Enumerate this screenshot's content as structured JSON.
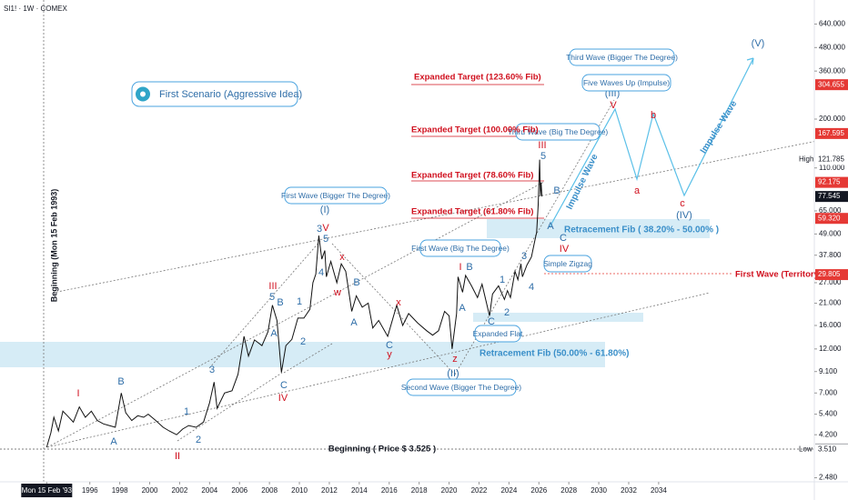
{
  "chart_data": {
    "type": "line",
    "title": "SI1! · 1W · COMEX",
    "log_scale": true,
    "color": "#111111",
    "x": [
      1993.12,
      1993.4,
      1993.6,
      1993.9,
      1994.2,
      1994.5,
      1994.9,
      1995.3,
      1995.7,
      1996.1,
      1996.5,
      1996.9,
      1997.3,
      1997.7,
      1998.1,
      1998.4,
      1998.8,
      1999.2,
      1999.6,
      1999.9,
      2000.4,
      2000.9,
      2001.3,
      2001.8,
      2002.2,
      2002.6,
      2003.1,
      2003.6,
      2004.0,
      2004.3,
      2004.5,
      2005.0,
      2005.5,
      2005.9,
      2006.3,
      2006.6,
      2007.0,
      2007.5,
      2007.9,
      2008.2,
      2008.5,
      2008.8,
      2009.1,
      2009.5,
      2009.9,
      2010.3,
      2010.7,
      2010.9,
      2011.1,
      2011.3,
      2011.5,
      2011.7,
      2011.8,
      2012.1,
      2012.5,
      2012.8,
      2013.1,
      2013.5,
      2013.8,
      2014.2,
      2014.6,
      2014.9,
      2015.3,
      2015.9,
      2016.5,
      2016.9,
      2017.3,
      2017.9,
      2018.5,
      2018.9,
      2019.3,
      2019.7,
      2020.0,
      2020.2,
      2020.5,
      2020.6,
      2020.9,
      2021.1,
      2021.5,
      2021.9,
      2022.2,
      2022.7,
      2022.9,
      2023.3,
      2023.7,
      2023.9,
      2024.1,
      2024.4,
      2024.6,
      2024.8,
      2024.9,
      2025.2,
      2025.5,
      2025.7,
      2025.85,
      2025.95,
      2026.05,
      2026.1,
      2026.15,
      2026.2
    ],
    "values": [
      3.6,
      4.3,
      5.2,
      4.4,
      5.6,
      5.3,
      4.9,
      5.9,
      5.2,
      5.6,
      5.0,
      4.8,
      4.7,
      4.6,
      7.0,
      5.5,
      5.0,
      5.3,
      5.2,
      5.4,
      5.0,
      4.6,
      4.4,
      4.2,
      4.5,
      4.7,
      4.6,
      4.9,
      6.2,
      8.0,
      5.8,
      7.0,
      7.2,
      8.8,
      14.0,
      11.0,
      13.4,
      12.5,
      14.8,
      20.5,
      17.0,
      9.0,
      12.5,
      13.5,
      17.5,
      17.5,
      19.5,
      27.0,
      30.0,
      48.0,
      36.0,
      40.0,
      29.0,
      35.0,
      27.0,
      34.0,
      31.0,
      19.0,
      23.0,
      20.0,
      21.0,
      15.5,
      17.0,
      14.0,
      20.5,
      16.0,
      18.5,
      16.5,
      15.0,
      14.2,
      15.0,
      19.0,
      18.0,
      12.0,
      18.5,
      29.0,
      24.0,
      29.5,
      26.0,
      22.5,
      26.5,
      18.0,
      23.5,
      26.0,
      22.0,
      24.5,
      22.5,
      31.0,
      28.0,
      34.0,
      29.0,
      33.5,
      37.0,
      44.0,
      50.0,
      70.0,
      121.785,
      78.0,
      92.175,
      77.545
    ],
    "xlim": [
      1990,
      2044.4
    ],
    "ylim": [
      2.36,
      859
    ],
    "xticks": [
      {
        "value": 1993.12,
        "label": "Mon 15 Feb '93"
      },
      1996,
      1998,
      2000,
      2002,
      2004,
      2006,
      2008,
      2010,
      2012,
      2014,
      2016,
      2018,
      2020,
      2022,
      2024,
      2026,
      2028,
      2030,
      2032,
      2034
    ],
    "yticks": [
      {
        "value": 640,
        "label": "640.000"
      },
      {
        "value": 480,
        "label": "480.000"
      },
      {
        "value": 360,
        "label": "360.000"
      },
      {
        "value": 200,
        "label": "200.000"
      },
      {
        "value": 110,
        "label": "110.000"
      },
      {
        "value": 65,
        "label": "65.000"
      },
      {
        "value": 49,
        "label": "49.000"
      },
      {
        "value": 37.8,
        "label": "37.800"
      },
      {
        "value": 27,
        "label": "27.000"
      },
      {
        "value": 21,
        "label": "21.000"
      },
      {
        "value": 16,
        "label": "16.000"
      },
      {
        "value": 12,
        "label": "12.000"
      },
      {
        "value": 9.1,
        "label": "9.100"
      },
      {
        "value": 7,
        "label": "7.000"
      },
      {
        "value": 5.4,
        "label": "5.400"
      },
      {
        "value": 4.2,
        "label": "4.200"
      },
      {
        "value": 2.48,
        "label": "2.480"
      }
    ],
    "price_labels": [
      {
        "value": 304.655,
        "label": "304.655",
        "color": "#e53935"
      },
      {
        "value": 167.595,
        "label": "167.595",
        "color": "#e53935"
      },
      {
        "value": 121.785,
        "label": "121.785",
        "color": "#ffffff"
      },
      {
        "value": 92.175,
        "label": "92.175",
        "color": "#e53935"
      },
      {
        "value": 77.545,
        "label": "77.545",
        "color": "#131722"
      },
      {
        "value": 59.32,
        "label": "59.320",
        "color": "#e53935"
      },
      {
        "value": 29.805,
        "label": "29.805",
        "color": "#e53935"
      },
      {
        "value": 3.525,
        "label": "3.525",
        "color": "#131722"
      },
      {
        "value": 3.51,
        "label": "3.510",
        "color": "#ffffff"
      }
    ],
    "high_label": "High",
    "low_label": "Low",
    "wave_labels": [
      {
        "text": "I",
        "color": "#d0101e"
      },
      {
        "text": "B",
        "color": "#2f6ea8"
      },
      {
        "text": "A",
        "color": "#2f6ea8"
      },
      {
        "text": "II",
        "color": "#d0101e"
      },
      {
        "text": "1",
        "color": "#2f6ea8"
      },
      {
        "text": "2",
        "color": "#2f6ea8"
      },
      {
        "text": "3",
        "color": "#2f6ea8"
      },
      {
        "text": "5",
        "color": "#2f6ea8"
      },
      {
        "text": "III",
        "color": "#d0101e"
      },
      {
        "text": "B",
        "color": "#2f6ea8"
      },
      {
        "text": "A",
        "color": "#2f6ea8"
      },
      {
        "text": "1",
        "color": "#2f6ea8"
      },
      {
        "text": "2",
        "color": "#2f6ea8"
      },
      {
        "text": "C",
        "color": "#2f6ea8"
      },
      {
        "text": "IV",
        "color": "#d0101e"
      },
      {
        "text": "3",
        "color": "#2f6ea8"
      },
      {
        "text": "4",
        "color": "#2f6ea8"
      },
      {
        "text": "5",
        "color": "#2f6ea8"
      },
      {
        "text": "V",
        "color": "#d0101e"
      },
      {
        "text": "(I)",
        "color": "#2f6ea8"
      },
      {
        "text": "x",
        "color": "#d0101e"
      },
      {
        "text": "w",
        "color": "#d0101e"
      },
      {
        "text": "B",
        "color": "#2f6ea8"
      },
      {
        "text": "A",
        "color": "#2f6ea8"
      },
      {
        "text": "x",
        "color": "#d0101e"
      },
      {
        "text": "C",
        "color": "#2f6ea8"
      },
      {
        "text": "y",
        "color": "#d0101e"
      },
      {
        "text": "z",
        "color": "#d0101e"
      },
      {
        "text": "(II)",
        "color": "#2f6ea8"
      },
      {
        "text": "I",
        "color": "#d0101e"
      },
      {
        "text": "B",
        "color": "#2f6ea8"
      },
      {
        "text": "A",
        "color": "#2f6ea8"
      },
      {
        "text": "1",
        "color": "#2f6ea8"
      },
      {
        "text": "2",
        "color": "#2f6ea8"
      },
      {
        "text": "C",
        "color": "#2f6ea8"
      },
      {
        "text": "3",
        "color": "#2f6ea8"
      },
      {
        "text": "4",
        "color": "#2f6ea8"
      },
      {
        "text": "III",
        "color": "#d0101e"
      },
      {
        "text": "5",
        "color": "#2f6ea8"
      },
      {
        "text": "B",
        "color": "#2f6ea8"
      },
      {
        "text": "A",
        "color": "#2f6ea8"
      },
      {
        "text": "C",
        "color": "#2f6ea8"
      },
      {
        "text": "IV",
        "color": "#d0101e"
      },
      {
        "text": "(III)",
        "color": "#2f6ea8"
      },
      {
        "text": "V",
        "color": "#d0101e"
      },
      {
        "text": "b",
        "color": "#d0101e"
      },
      {
        "text": "a",
        "color": "#d0101e"
      },
      {
        "text": "c",
        "color": "#d0101e"
      },
      {
        "text": "(IV)",
        "color": "#2f6ea8"
      },
      {
        "text": "(V)",
        "color": "#2f6ea8"
      }
    ],
    "boxes": [
      "First Wave (Bigger The Degree)",
      "Second Wave (Bigger The Degree)",
      "First Wave (Big The Degree)",
      "Expanded Flat",
      "Third Wave (Big The Degree)",
      "Simple Zigzag",
      "Third Wave (Bigger The Degree)",
      "Five Waves Up (Impulse)"
    ],
    "scenario": "First Scenario (Aggressive Idea)",
    "targets": [
      "Expanded Target (123.60% Fib)",
      "Expanded Target (100.00% Fib)",
      "Expanded Target (78.60% Fib)",
      "Expanded Target (61.80% Fib)"
    ],
    "zones": [
      "Retracement Fib ( 38.20% - 50.00% )",
      "Retracement Fib (50.00% - 61.80%)"
    ],
    "impulse_labels": [
      "Impulse Wave",
      "Impulse Wave"
    ],
    "territory": "First Wave (Territory)",
    "beginning_price": "Beginning ( Price $ 3.525 )",
    "beginning_date": "Beginning (Mon 15 Feb 1993)"
  }
}
